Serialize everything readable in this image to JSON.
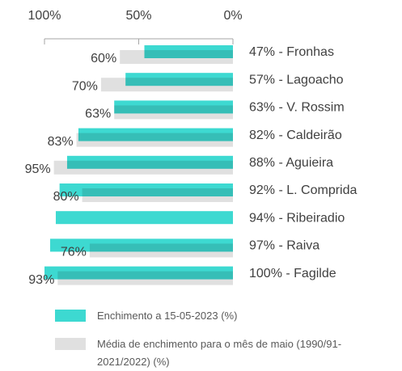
{
  "chart_data": {
    "type": "bar",
    "orientation": "horizontal",
    "categories": [
      "47% - Fronhas",
      "57% - Lagoacho",
      "63% - V. Rossim",
      "82% - Caldeirão",
      "88% - Aguieira",
      "92% - L. Comprida",
      "94% - Ribeiradio",
      "97% - Raiva",
      "100% - Fagilde"
    ],
    "series": [
      {
        "name": "Enchimento a 15-05-2023 (%)",
        "color": "#3dd9d1",
        "values": [
          47,
          57,
          63,
          82,
          88,
          92,
          94,
          97,
          100
        ]
      },
      {
        "name": "Média de enchimento para o mês de maio (1990/91-2021/2022) (%)",
        "color": "#e0e0e0",
        "values": [
          60,
          70,
          63,
          83,
          95,
          80,
          null,
          76,
          93
        ],
        "value_labels": [
          "60%",
          "70%",
          "63%",
          "83%",
          "95%",
          "80%",
          null,
          "76%",
          "93%"
        ]
      }
    ],
    "xlim": [
      100,
      0
    ],
    "xticks": [
      {
        "value": 100,
        "label": "100%"
      },
      {
        "value": 50,
        "label": "50%"
      },
      {
        "value": 0,
        "label": "0%"
      }
    ]
  }
}
